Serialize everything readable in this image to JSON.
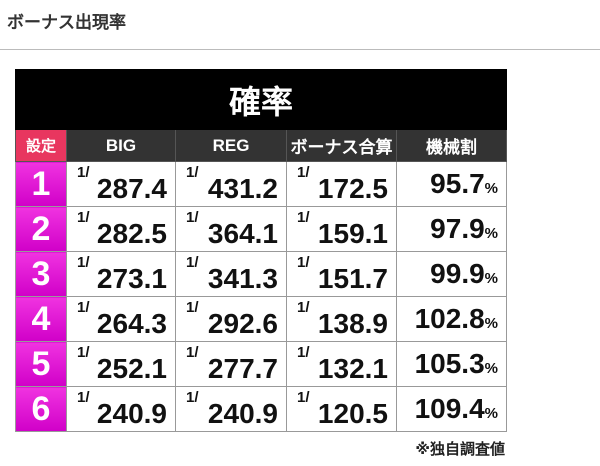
{
  "page_title": "ボーナス出現率",
  "table": {
    "caption": "確率",
    "headers": [
      "設定",
      "BIG",
      "REG",
      "ボーナス合算",
      "機械割"
    ],
    "prefix": "1/",
    "percent": "%",
    "rows": [
      {
        "setting": "1",
        "big": "287.4",
        "reg": "431.2",
        "total": "172.5",
        "payout": "95.7"
      },
      {
        "setting": "2",
        "big": "282.5",
        "reg": "364.1",
        "total": "159.1",
        "payout": "97.9"
      },
      {
        "setting": "3",
        "big": "273.1",
        "reg": "341.3",
        "total": "151.7",
        "payout": "99.9"
      },
      {
        "setting": "4",
        "big": "264.3",
        "reg": "292.6",
        "total": "138.9",
        "payout": "102.8"
      },
      {
        "setting": "5",
        "big": "252.1",
        "reg": "277.7",
        "total": "132.1",
        "payout": "105.3"
      },
      {
        "setting": "6",
        "big": "240.9",
        "reg": "240.9",
        "total": "120.5",
        "payout": "109.4"
      }
    ]
  },
  "footnote": "※独自調査値",
  "colors": {
    "setting_header": "#e8365f",
    "setting_cell": "#e000d0",
    "header": "#333333",
    "caption": "#000000"
  }
}
